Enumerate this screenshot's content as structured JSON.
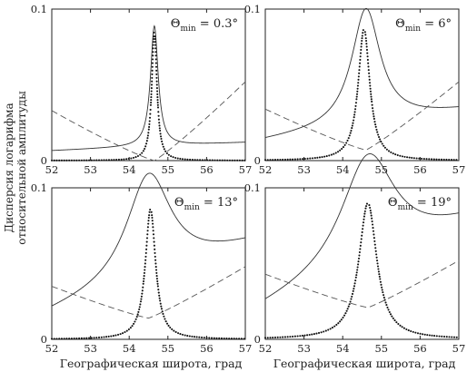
{
  "figure": {
    "ylabel_line1": "Дисперсия логарифма",
    "ylabel_line2": "относительной амплитуды",
    "xlabel": "Географическая широта, град"
  },
  "chart_data": [
    {
      "type": "line",
      "title": "Θmin = 0.3°",
      "title_symbol": "Θ",
      "title_subscript": "min",
      "title_value": " = 0.3°",
      "xlim": [
        52,
        57
      ],
      "ylim": [
        0,
        0.1
      ],
      "xticks": [
        "52",
        "53",
        "54",
        "55",
        "56",
        "57"
      ],
      "yticks": [
        "0",
        "0.1"
      ],
      "grid": false,
      "curves": {
        "solid": {
          "baseline": 0.0065,
          "slope": 0.0011,
          "peak_x": 54.65,
          "peak_y": 0.086,
          "width": 0.12
        },
        "dashed": {
          "min_x": 54.65,
          "min_y": 0.0,
          "left_y": 0.033,
          "right_y": 0.052
        },
        "dots": {
          "peak_x": 54.65,
          "peak_y": 0.086,
          "width": 0.08
        }
      }
    },
    {
      "type": "line",
      "title": "Θmin = 6°",
      "title_symbol": "Θ",
      "title_subscript": "min",
      "title_value": " = 6°",
      "xlim": [
        52,
        57
      ],
      "ylim": [
        0,
        0.1
      ],
      "xticks": [
        "52",
        "53",
        "54",
        "55",
        "56",
        "57"
      ],
      "yticks": [
        "0",
        "0.1"
      ],
      "grid": false,
      "curves": {
        "solid": {
          "baseline": 0.013,
          "slope": 0.004,
          "peak_x": 54.6,
          "peak_y": 0.09,
          "width": 0.45
        },
        "dashed": {
          "min_x": 54.6,
          "min_y": 0.007,
          "left_y": 0.034,
          "right_y": 0.052
        },
        "dots": {
          "peak_x": 54.55,
          "peak_y": 0.087,
          "width": 0.18
        }
      }
    },
    {
      "type": "line",
      "title": "Θmin = 13°",
      "title_symbol": "Θ",
      "title_subscript": "min",
      "title_value": " = 13°",
      "xlim": [
        52,
        57
      ],
      "ylim": [
        0,
        0.1
      ],
      "xticks": [
        "52",
        "53",
        "54",
        "55",
        "56",
        "57"
      ],
      "yticks": [
        "0",
        "0.1"
      ],
      "grid": false,
      "curves": {
        "solid": {
          "baseline": 0.017,
          "slope": 0.009,
          "peak_x": 54.5,
          "peak_y": 0.087,
          "width": 0.7
        },
        "dashed": {
          "min_x": 54.5,
          "min_y": 0.014,
          "left_y": 0.035,
          "right_y": 0.048
        },
        "dots": {
          "peak_x": 54.55,
          "peak_y": 0.086,
          "width": 0.16
        }
      }
    },
    {
      "type": "line",
      "title": "Θmin = 19°",
      "title_symbol": "Θ",
      "title_subscript": "min",
      "title_value": " = 19°",
      "xlim": [
        52,
        57
      ],
      "ylim": [
        0,
        0.1
      ],
      "xticks": [
        "52",
        "53",
        "54",
        "55",
        "56",
        "57"
      ],
      "yticks": [
        "0",
        "0.1"
      ],
      "grid": false,
      "curves": {
        "solid": {
          "baseline": 0.02,
          "slope": 0.011,
          "peak_x": 54.65,
          "peak_y": 0.093,
          "width": 0.85
        },
        "dashed": {
          "min_x": 54.65,
          "min_y": 0.021,
          "left_y": 0.043,
          "right_y": 0.052
        },
        "dots": {
          "peak_x": 54.65,
          "peak_y": 0.09,
          "width": 0.28
        }
      }
    }
  ]
}
